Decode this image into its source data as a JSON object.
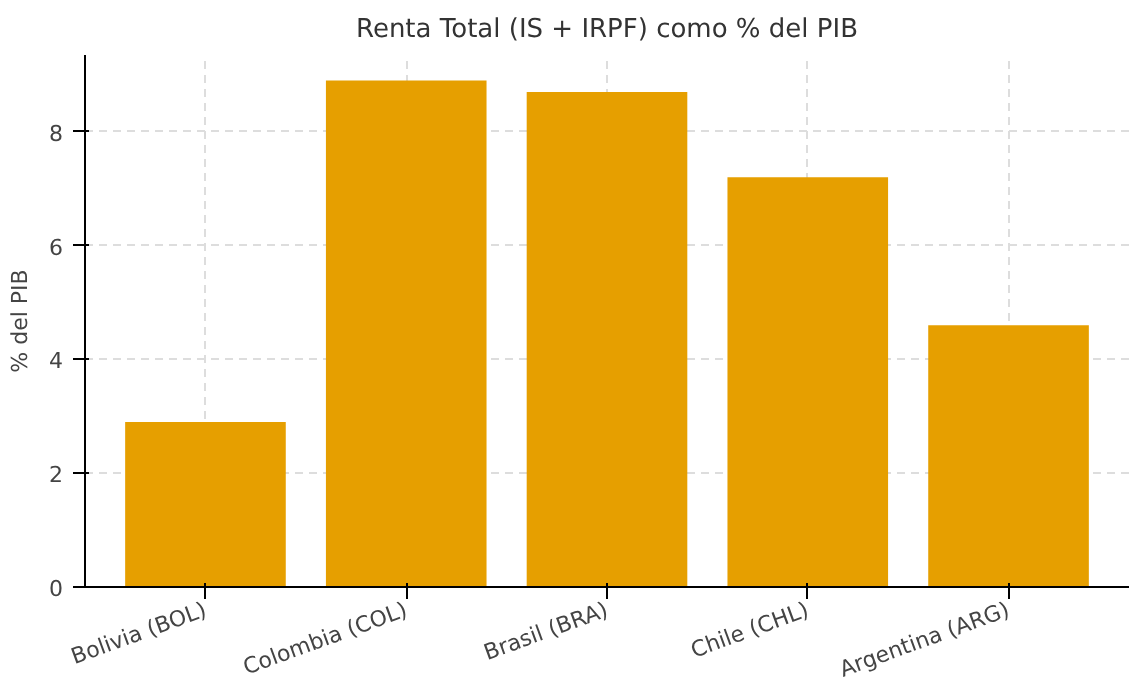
{
  "chart_data": {
    "type": "bar",
    "title": "Renta Total (IS + IRPF) como % del PIB",
    "ylabel": "% del PIB",
    "categories": [
      "Bolivia (BOL)",
      "Colombia (COL)",
      "Brasil (BRA)",
      "Chile (CHL)",
      "Argentina (ARG)"
    ],
    "values": [
      2.9,
      8.9,
      8.7,
      7.2,
      4.6
    ],
    "color": "#e69f00",
    "ylim": [
      0,
      9.35
    ],
    "yticks": [
      0,
      2,
      4,
      6,
      8
    ],
    "grid": true
  }
}
